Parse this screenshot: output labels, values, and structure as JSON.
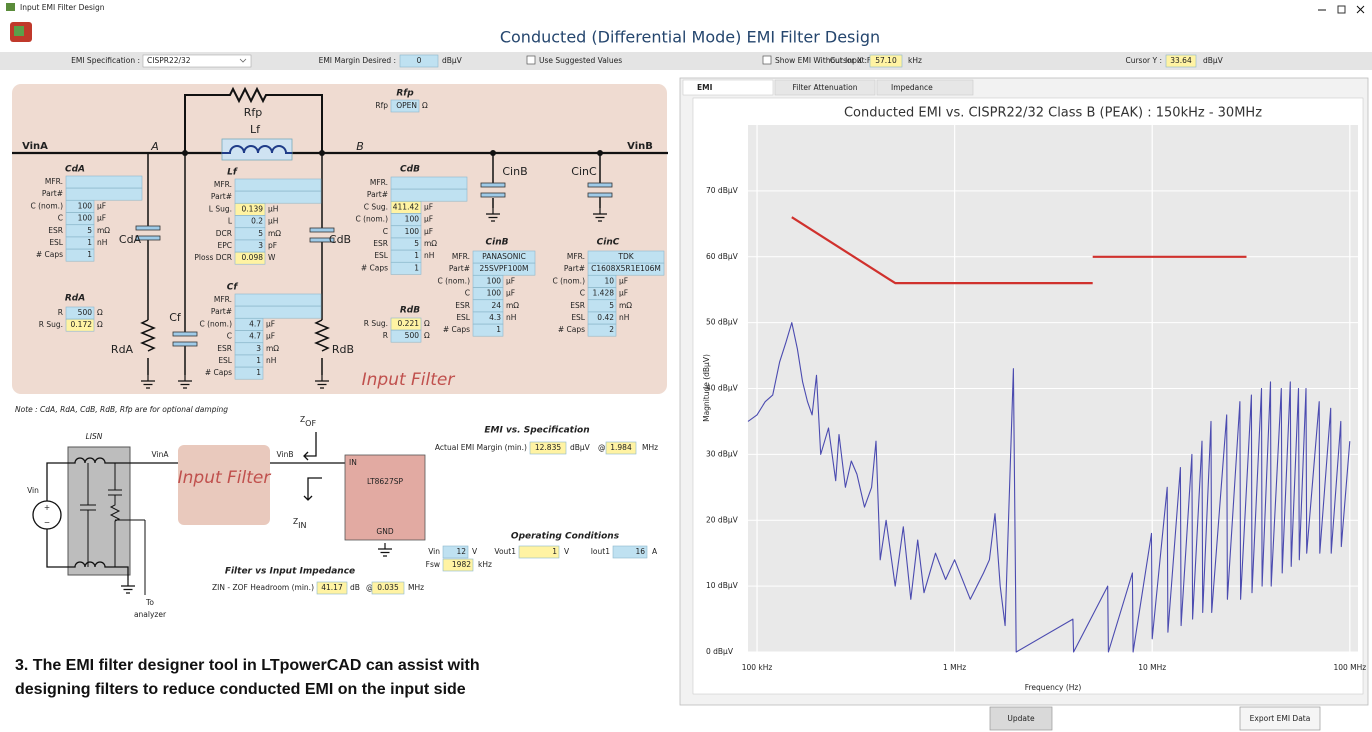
{
  "window": {
    "title": "Input EMI Filter Design"
  },
  "header": {
    "title": "Conducted (Differential Mode) EMI Filter Design"
  },
  "toolbar": {
    "emi_spec_label": "EMI Specification :",
    "emi_spec": "CISPR22/32",
    "margin_label": "EMI Margin Desired :",
    "margin_value": "0",
    "margin_unit": "dBµV",
    "suggested": "Use Suggested Values",
    "show_without": "Show EMI Without Input Filter",
    "cursor_x_label": "Cursor X :",
    "cursor_x": "57.10",
    "cursor_x_unit": "kHz",
    "cursor_y_label": "Cursor Y :",
    "cursor_y": "33.64",
    "cursor_y_unit": "dBµV"
  },
  "schematic": {
    "vin_a": "VinA",
    "vin_b": "VinB",
    "node_a": "A",
    "node_b": "B",
    "rfp": "Rfp",
    "lf": "Lf",
    "cda": "CdA",
    "cf": "Cf",
    "rda": "RdA",
    "cdb": "CdB",
    "rdb": "RdB",
    "cinb": "CinB",
    "cinc": "CinC",
    "input_filter": "Input Filter"
  },
  "blocks": [
    {
      "title": "Rfp",
      "rows": [
        {
          "label": "Rfp",
          "value": "OPEN",
          "unit": "Ω"
        }
      ]
    },
    {
      "title": "CdA",
      "rows": [
        {
          "label": "MFR."
        },
        {
          "label": "Part#"
        },
        {
          "label": "C (nom.)",
          "value": "100",
          "unit": "µF"
        },
        {
          "label": "C",
          "value": "100",
          "unit": "µF"
        },
        {
          "label": "ESR",
          "value": "5",
          "unit": "mΩ"
        },
        {
          "label": "ESL",
          "value": "1",
          "unit": "nH"
        },
        {
          "label": "# Caps",
          "value": "1"
        }
      ]
    },
    {
      "title": "RdA",
      "rows": [
        {
          "label": "R",
          "value": "500",
          "unit": "Ω"
        },
        {
          "label": "R Sug.",
          "value": "0.172",
          "unit": "Ω"
        }
      ]
    },
    {
      "title": "Lf",
      "rows": [
        {
          "label": "MFR."
        },
        {
          "label": "Part#"
        },
        {
          "label": "L Sug.",
          "value": "0.139",
          "unit": "µH"
        },
        {
          "label": "L",
          "value": "0.2",
          "unit": "µH"
        },
        {
          "label": "DCR",
          "value": "5",
          "unit": "mΩ"
        },
        {
          "label": "EPC",
          "value": "3",
          "unit": "pF"
        },
        {
          "label": "Ploss DCR",
          "value": "0.098",
          "unit": "W"
        }
      ]
    },
    {
      "title": "Cf",
      "rows": [
        {
          "label": "MFR."
        },
        {
          "label": "Part#"
        },
        {
          "label": "C (nom.)",
          "value": "4.7",
          "unit": "µF"
        },
        {
          "label": "C",
          "value": "4.7",
          "unit": "µF"
        },
        {
          "label": "ESR",
          "value": "3",
          "unit": "mΩ"
        },
        {
          "label": "ESL",
          "value": "1",
          "unit": "nH"
        },
        {
          "label": "# Caps",
          "value": "1"
        }
      ]
    },
    {
      "title": "CdB",
      "rows": [
        {
          "label": "MFR."
        },
        {
          "label": "Part#"
        },
        {
          "label": "C Sug.",
          "value": "411.42",
          "unit": "µF"
        },
        {
          "label": "C (nom.)",
          "value": "100",
          "unit": "µF"
        },
        {
          "label": "C",
          "value": "100",
          "unit": "µF"
        },
        {
          "label": "ESR",
          "value": "5",
          "unit": "mΩ"
        },
        {
          "label": "ESL",
          "value": "1",
          "unit": "nH"
        },
        {
          "label": "# Caps",
          "value": "1"
        }
      ]
    },
    {
      "title": "RdB",
      "rows": [
        {
          "label": "R Sug.",
          "value": "0.221",
          "unit": "Ω"
        },
        {
          "label": "R",
          "value": "500",
          "unit": "Ω"
        }
      ]
    },
    {
      "title": "CinB",
      "rows": [
        {
          "label": "MFR.",
          "value": "PANASONIC"
        },
        {
          "label": "Part#",
          "value": "25SVPF100M"
        },
        {
          "label": "C (nom.)",
          "value": "100",
          "unit": "µF"
        },
        {
          "label": "C",
          "value": "100",
          "unit": "µF"
        },
        {
          "label": "ESR",
          "value": "24",
          "unit": "mΩ"
        },
        {
          "label": "ESL",
          "value": "4.3",
          "unit": "nH"
        },
        {
          "label": "# Caps",
          "value": "1"
        }
      ]
    },
    {
      "title": "CinC",
      "rows": [
        {
          "label": "MFR.",
          "value": "TDK"
        },
        {
          "label": "Part#",
          "value": "C1608X5R1E106M"
        },
        {
          "label": "C (nom.)",
          "value": "10",
          "unit": "µF"
        },
        {
          "label": "C",
          "value": "1.428",
          "unit": "µF"
        },
        {
          "label": "ESR",
          "value": "5",
          "unit": "mΩ"
        },
        {
          "label": "ESL",
          "value": "0.42",
          "unit": "nH"
        },
        {
          "label": "# Caps",
          "value": "2"
        }
      ]
    }
  ],
  "note": "Note : CdA, RdA, CdB, RdB, Rfp are for optional damping",
  "lisn": {
    "title": "LISN",
    "vin": "Vin",
    "plus": "+",
    "minus": "−",
    "vin_a": "VinA",
    "vin_b": "VinB",
    "input_filter": "Input Filter",
    "z_of": "Z",
    "z_of_sub": "OF",
    "z_in": "Z",
    "z_in_sub": "IN",
    "ic_in": "IN",
    "ic": "LT8627SP",
    "ic_gnd": "GND",
    "analyzer": [
      "To",
      "analyzer"
    ]
  },
  "emi_vs_spec": {
    "title": "EMI vs. Specification",
    "label": "Actual EMI Margin (min.)",
    "margin": "12.835",
    "margin_unit": "dBµV",
    "at": "@",
    "freq": "1.984",
    "freq_unit": "MHz"
  },
  "operating": {
    "title": "Operating Conditions",
    "vin_label": "Vin",
    "vin": "12",
    "vin_unit": "V",
    "vout_label": "Vout1",
    "vout": "1",
    "vout_unit": "V",
    "iout_label": "Iout1",
    "iout": "16",
    "iout_unit": "A",
    "fsw_label": "Fsw",
    "fsw": "1982",
    "fsw_unit": "kHz"
  },
  "impedance": {
    "title": "Filter vs Input Impedance",
    "label": "ZIN - ZOF Headroom (min.)",
    "headroom": "41.17",
    "headroom_unit": "dB",
    "at": "@",
    "freq": "0.035",
    "freq_unit": "MHz"
  },
  "caption": [
    "3. The EMI filter designer tool in LTpowerCAD can assist with",
    "designing filters to reduce conducted EMI on the input side"
  ],
  "tabs": [
    "EMI",
    "Filter Attenuation",
    "Impedance"
  ],
  "buttons": [
    "Update",
    "Export EMI Data"
  ],
  "chart_data": {
    "type": "line",
    "title": "Conducted EMI vs. CISPR22/32 Class B (PEAK) : 150kHz - 30MHz",
    "xlabel": "Frequency (Hz)",
    "ylabel": "Magnitude (dBµV)",
    "x_scale": "log",
    "grid": true,
    "xlim": [
      90000,
      110000000
    ],
    "ylim": [
      0,
      80
    ],
    "xticks": [
      {
        "value": 100000,
        "label": "100 kHz"
      },
      {
        "value": 1000000,
        "label": "1 MHz"
      },
      {
        "value": 10000000,
        "label": "10 MHz"
      },
      {
        "value": 100000000,
        "label": "100 MHz"
      }
    ],
    "yticks": [
      {
        "value": 0,
        "label": "0 dBµV"
      },
      {
        "value": 10,
        "label": "10 dBµV"
      },
      {
        "value": 20,
        "label": "20 dBµV"
      },
      {
        "value": 30,
        "label": "30 dBµV"
      },
      {
        "value": 40,
        "label": "40 dBµV"
      },
      {
        "value": 50,
        "label": "50 dBµV"
      },
      {
        "value": 60,
        "label": "60 dBµV"
      },
      {
        "value": 70,
        "label": "70 dBµV"
      }
    ],
    "series": [
      {
        "color": "#4b4bb0",
        "x": [
          90000,
          100000,
          110000,
          120000,
          130000,
          140000,
          150000,
          160000,
          170000,
          180000,
          190000,
          200000,
          210000,
          230000,
          250000,
          260000,
          280000,
          300000,
          320000,
          350000,
          380000,
          400000,
          420000,
          450000,
          500000,
          550000,
          600000,
          650000,
          700000,
          800000,
          900000,
          1000000,
          1200000,
          1400000,
          1500000,
          1600000,
          1700000,
          1800000,
          1984000,
          2050000,
          3968000,
          4000000,
          5952000,
          6000000,
          7936000,
          8000000,
          9920000,
          10000000,
          11904000,
          12000000,
          13888000,
          14000000,
          15872000,
          16000000,
          17856000,
          18000000,
          19840000,
          20000000,
          23808000,
          24000000,
          27776000,
          28000000,
          31744000,
          32000000,
          35712000,
          36000000,
          39680000,
          40000000,
          45000000,
          45500000,
          50000000,
          50500000,
          55000000,
          55500000,
          60000000,
          60500000,
          70000000,
          70500000,
          80000000,
          80500000,
          90000000,
          90500000,
          100000000
        ],
        "values": [
          35,
          36,
          38,
          39,
          44,
          47,
          50,
          46,
          41,
          38,
          36,
          42,
          30,
          34,
          26,
          33,
          25,
          29,
          27,
          22,
          25,
          32,
          14,
          20,
          10,
          19,
          8,
          17,
          9,
          15,
          11,
          14,
          8,
          12,
          14,
          21,
          10,
          4,
          43,
          0,
          5,
          0,
          10,
          0,
          12,
          0,
          18,
          2,
          25,
          3,
          28,
          4,
          30,
          5,
          32,
          6,
          35,
          6,
          36,
          8,
          38,
          8,
          39,
          9,
          40,
          10,
          41,
          10,
          40,
          12,
          41,
          13,
          40,
          14,
          40,
          15,
          38,
          15,
          37,
          15,
          35,
          16,
          32
        ]
      },
      {
        "color": "#d0312d",
        "x": [
          150000,
          500000,
          5000000,
          5000000,
          5000000,
          30000000
        ],
        "values": [
          66,
          56,
          56,
          null,
          60,
          60
        ]
      }
    ]
  }
}
